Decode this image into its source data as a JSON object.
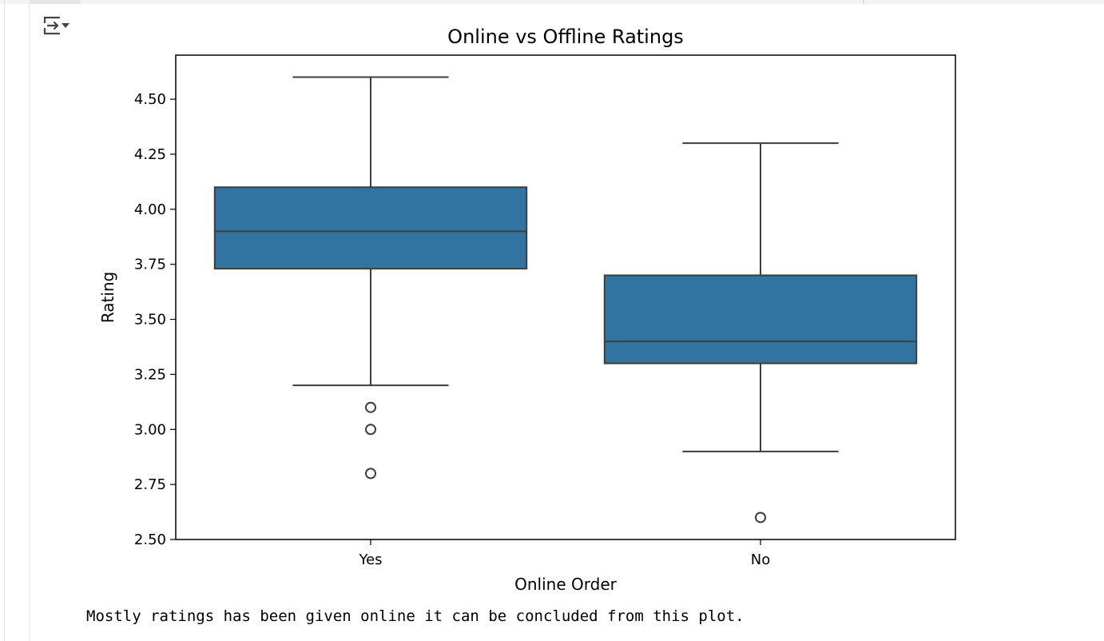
{
  "output": {
    "toggle_icon": "output-collapse-icon",
    "note": "Mostly ratings has been given online it can be concluded from this plot."
  },
  "colors": {
    "box_fill": "#3274a1",
    "line": "#3d3d3d",
    "frame": "#000000",
    "gutter": "#e8e8e8"
  },
  "chart_data": {
    "type": "box",
    "title": "Online vs Offline Ratings",
    "xlabel": "Online Order",
    "ylabel": "Rating",
    "ylim": [
      2.5,
      4.7
    ],
    "yticks": [
      2.5,
      2.75,
      3.0,
      3.25,
      3.5,
      3.75,
      4.0,
      4.25,
      4.5
    ],
    "ytick_labels": [
      "2.50",
      "2.75",
      "3.00",
      "3.25",
      "3.50",
      "3.75",
      "4.00",
      "4.25",
      "4.50"
    ],
    "categories": [
      "Yes",
      "No"
    ],
    "boxes": [
      {
        "category": "Yes",
        "whisker_low": 3.2,
        "q1": 3.73,
        "median": 3.9,
        "q3": 4.1,
        "whisker_high": 4.6,
        "outliers": [
          3.1,
          3.0,
          2.8
        ]
      },
      {
        "category": "No",
        "whisker_low": 2.9,
        "q1": 3.3,
        "median": 3.4,
        "q3": 3.7,
        "whisker_high": 4.3,
        "outliers": [
          2.6
        ]
      }
    ],
    "grid": false,
    "legend": "none"
  }
}
